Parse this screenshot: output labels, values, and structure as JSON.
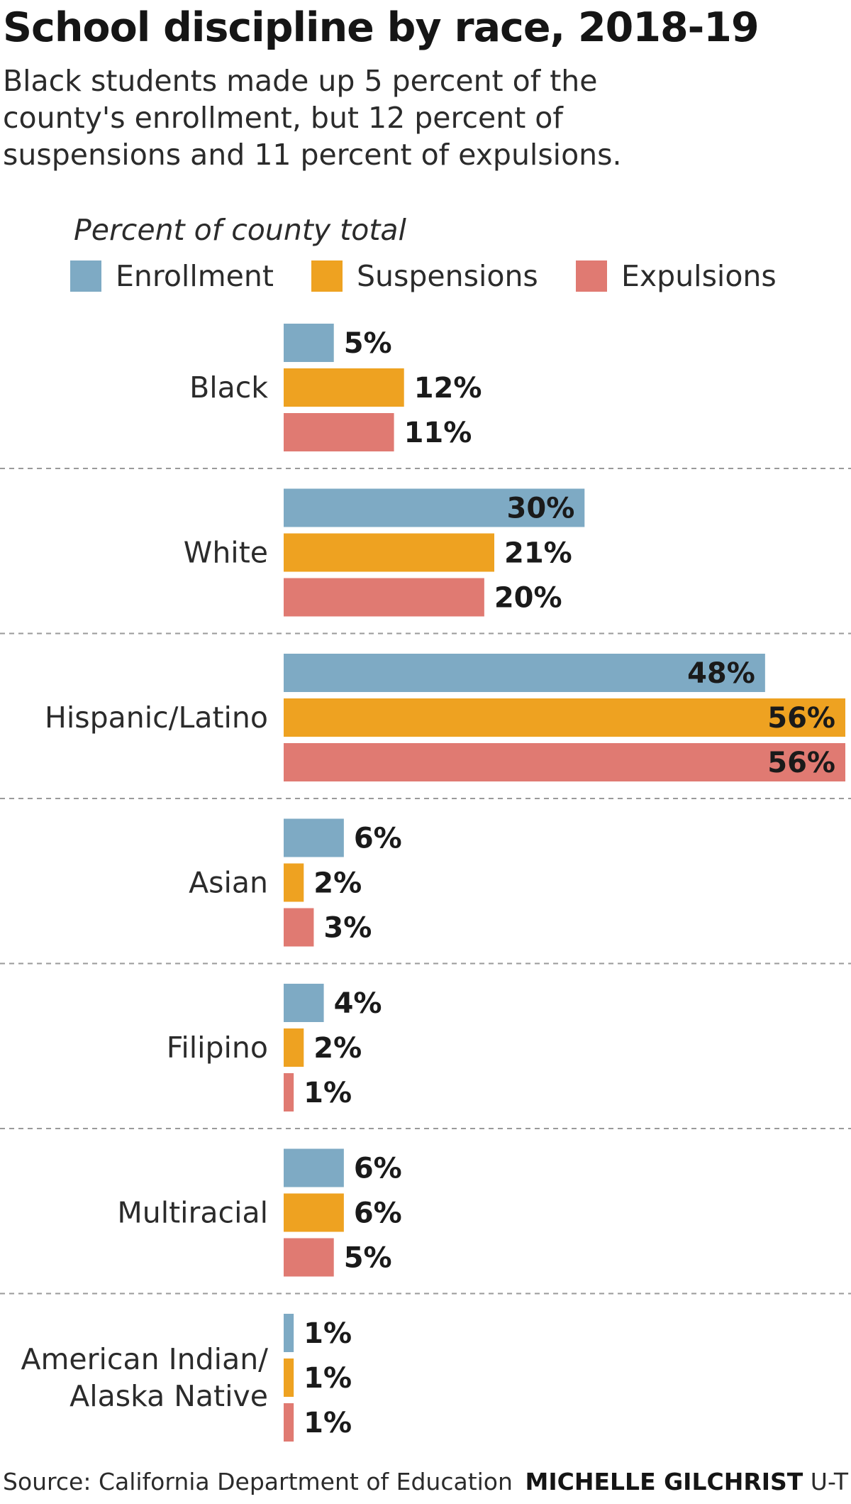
{
  "title": "School discipline by race, 2018-19",
  "subtitle": "Black students made up 5 percent of the county's enrollment, but 12 percent of suspensions and 11 percent of expulsions.",
  "source": "Source: California Department of Education",
  "credit_name": "MICHELLE GILCHRIST",
  "credit_org": "U-T",
  "colors": {
    "enrollment": "#7eaac4",
    "suspensions": "#eea221",
    "expulsions": "#e07a72"
  },
  "chart_data": {
    "type": "bar",
    "orientation": "horizontal",
    "legend_title": "Percent of county total",
    "legend_position": "top-left",
    "grid": false,
    "xlim": [
      0,
      56
    ],
    "categories": [
      "Black",
      "White",
      "Hispanic/Latino",
      "Asian",
      "Filipino",
      "Multiracial",
      "American Indian/\nAlaska Native"
    ],
    "series": [
      {
        "name": "Enrollment",
        "color": "#7eaac4",
        "values": [
          5,
          30,
          48,
          6,
          4,
          6,
          1
        ],
        "labels": [
          "5%",
          "30%",
          "48%",
          "6%",
          "4%",
          "6%",
          "1%"
        ]
      },
      {
        "name": "Suspensions",
        "color": "#eea221",
        "values": [
          12,
          21,
          56,
          2,
          2,
          6,
          1
        ],
        "labels": [
          "12%",
          "21%",
          "56%",
          "2%",
          "2%",
          "6%",
          "1%"
        ]
      },
      {
        "name": "Expulsions",
        "color": "#e07a72",
        "values": [
          11,
          20,
          56,
          3,
          1,
          5,
          1
        ],
        "labels": [
          "11%",
          "20%",
          "56%",
          "3%",
          "1%",
          "5%",
          "1%"
        ]
      }
    ]
  }
}
